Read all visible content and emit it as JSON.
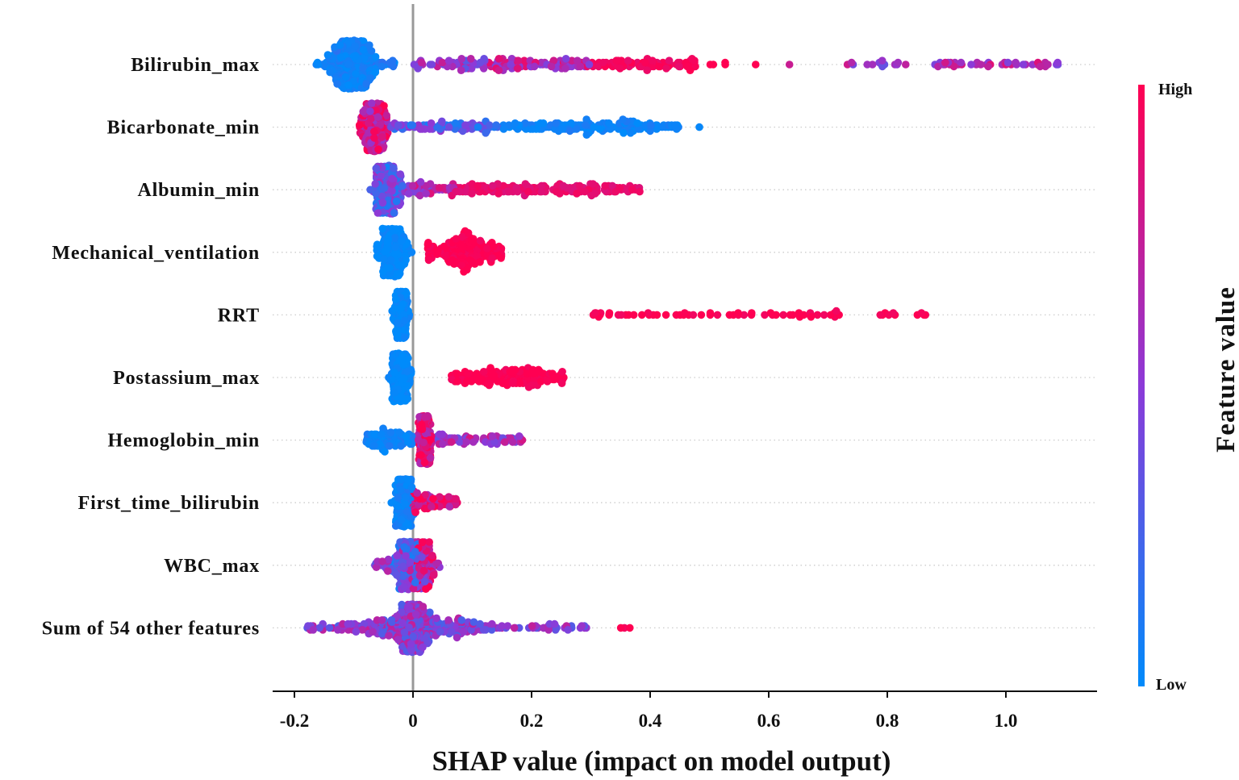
{
  "chart_data": {
    "type": "scatter",
    "subtype": "shap-beeswarm",
    "xlabel": "SHAP value (impact on model output)",
    "xlim": [
      -0.235,
      1.155
    ],
    "xticks": [
      -0.2,
      0,
      0.2,
      0.4,
      0.6,
      0.8,
      1.0
    ],
    "xtick_labels": [
      "-0.2",
      "0",
      "0.2",
      "0.4",
      "0.6",
      "0.8",
      "1.0"
    ],
    "colorbar": {
      "title": "Feature value",
      "high_label": "High",
      "low_label": "Low",
      "low_color": "#008bfb",
      "mid_color": "#8c3ad8",
      "high_color": "#ff0052"
    },
    "features": [
      {
        "name": "Bilirubin_max",
        "clusters": [
          {
            "dist": "normal",
            "mean": -0.1,
            "sd": 0.018,
            "n": 420,
            "value": 0.05
          },
          {
            "dist": "uniform",
            "min": -0.165,
            "max": -0.03,
            "n": 40,
            "value": 0.1
          },
          {
            "dist": "uniform",
            "min": 0.0,
            "max": 0.12,
            "n": 60,
            "value": 0.55
          },
          {
            "dist": "uniform",
            "min": 0.12,
            "max": 0.3,
            "n": 110,
            "value": 0.7
          },
          {
            "dist": "uniform",
            "min": 0.3,
            "max": 0.48,
            "n": 90,
            "value": 0.95
          },
          {
            "dist": "uniform",
            "min": 0.5,
            "max": 0.58,
            "n": 5,
            "value": 1.0
          },
          {
            "dist": "uniform",
            "min": 0.635,
            "max": 0.635,
            "n": 1,
            "value": 0.6
          },
          {
            "dist": "uniform",
            "min": 0.73,
            "max": 0.85,
            "n": 14,
            "value": 0.6
          },
          {
            "dist": "uniform",
            "min": 0.88,
            "max": 1.09,
            "n": 45,
            "value": 0.62
          }
        ]
      },
      {
        "name": "Bicarbonate_min",
        "clusters": [
          {
            "dist": "normal",
            "mean": -0.065,
            "sd": 0.009,
            "n": 360,
            "value": 0.8
          },
          {
            "dist": "uniform",
            "min": -0.09,
            "max": -0.04,
            "n": 50,
            "value": 0.7
          },
          {
            "dist": "uniform",
            "min": -0.04,
            "max": 0.15,
            "n": 90,
            "value": 0.3
          },
          {
            "dist": "uniform",
            "min": 0.15,
            "max": 0.45,
            "n": 170,
            "value": 0.05
          },
          {
            "dist": "uniform",
            "min": 0.483,
            "max": 0.483,
            "n": 1,
            "value": 0.05
          }
        ]
      },
      {
        "name": "Albumin_min",
        "clusters": [
          {
            "dist": "normal",
            "mean": -0.045,
            "sd": 0.009,
            "n": 360,
            "value": 0.35
          },
          {
            "dist": "uniform",
            "min": -0.065,
            "max": -0.02,
            "n": 40,
            "value": 0.3
          },
          {
            "dist": "uniform",
            "min": -0.02,
            "max": 0.07,
            "n": 60,
            "value": 0.65
          },
          {
            "dist": "uniform",
            "min": 0.07,
            "max": 0.385,
            "n": 180,
            "value": 0.9
          }
        ]
      },
      {
        "name": "Mechanical_ventilation",
        "clusters": [
          {
            "dist": "normal",
            "mean": -0.035,
            "sd": 0.011,
            "n": 360,
            "value": 0.0
          },
          {
            "dist": "uniform",
            "min": 0.025,
            "max": 0.15,
            "n": 120,
            "value": 1.0
          },
          {
            "dist": "normal",
            "mean": 0.085,
            "sd": 0.014,
            "n": 100,
            "value": 1.0
          }
        ]
      },
      {
        "name": "RRT",
        "clusters": [
          {
            "dist": "normal",
            "mean": -0.02,
            "sd": 0.005,
            "n": 260,
            "value": 0.0
          },
          {
            "dist": "uniform",
            "min": 0.3,
            "max": 0.72,
            "n": 60,
            "value": 1.0
          },
          {
            "dist": "uniform",
            "min": 0.78,
            "max": 0.88,
            "n": 10,
            "value": 1.0
          }
        ]
      },
      {
        "name": "Postassium_max",
        "clusters": [
          {
            "dist": "normal",
            "mean": -0.022,
            "sd": 0.007,
            "n": 260,
            "value": 0.0
          },
          {
            "dist": "uniform",
            "min": 0.065,
            "max": 0.255,
            "n": 200,
            "value": 1.0
          }
        ]
      },
      {
        "name": "Hemoglobin_min",
        "clusters": [
          {
            "dist": "uniform",
            "min": -0.08,
            "max": 0.0,
            "n": 100,
            "value": 0.05
          },
          {
            "dist": "normal",
            "mean": 0.02,
            "sd": 0.005,
            "n": 260,
            "value": 0.85
          },
          {
            "dist": "uniform",
            "min": 0.03,
            "max": 0.19,
            "n": 80,
            "value": 0.6
          }
        ]
      },
      {
        "name": "First_time_bilirubin",
        "clusters": [
          {
            "dist": "normal",
            "mean": -0.015,
            "sd": 0.007,
            "n": 260,
            "value": 0.05
          },
          {
            "dist": "uniform",
            "min": 0.0,
            "max": 0.075,
            "n": 80,
            "value": 0.85
          }
        ]
      },
      {
        "name": "WBC_max",
        "clusters": [
          {
            "dist": "normal",
            "mean": -0.01,
            "sd": 0.011,
            "n": 250,
            "value": 0.3
          },
          {
            "dist": "normal",
            "mean": 0.015,
            "sd": 0.009,
            "n": 200,
            "value": 0.8
          },
          {
            "dist": "uniform",
            "min": -0.065,
            "max": 0.045,
            "n": 50,
            "value": 0.5
          }
        ]
      },
      {
        "name": "Sum of 54 other features",
        "clusters": [
          {
            "dist": "normal",
            "mean": 0.0,
            "sd": 0.009,
            "n": 320,
            "value": 0.5
          },
          {
            "dist": "normal",
            "mean": 0.0,
            "sd": 0.06,
            "n": 250,
            "value": 0.5
          },
          {
            "dist": "uniform",
            "min": -0.18,
            "max": 0.3,
            "n": 120,
            "value": 0.5
          },
          {
            "dist": "uniform",
            "min": 0.33,
            "max": 0.37,
            "n": 3,
            "value": 1.0
          }
        ]
      }
    ]
  }
}
